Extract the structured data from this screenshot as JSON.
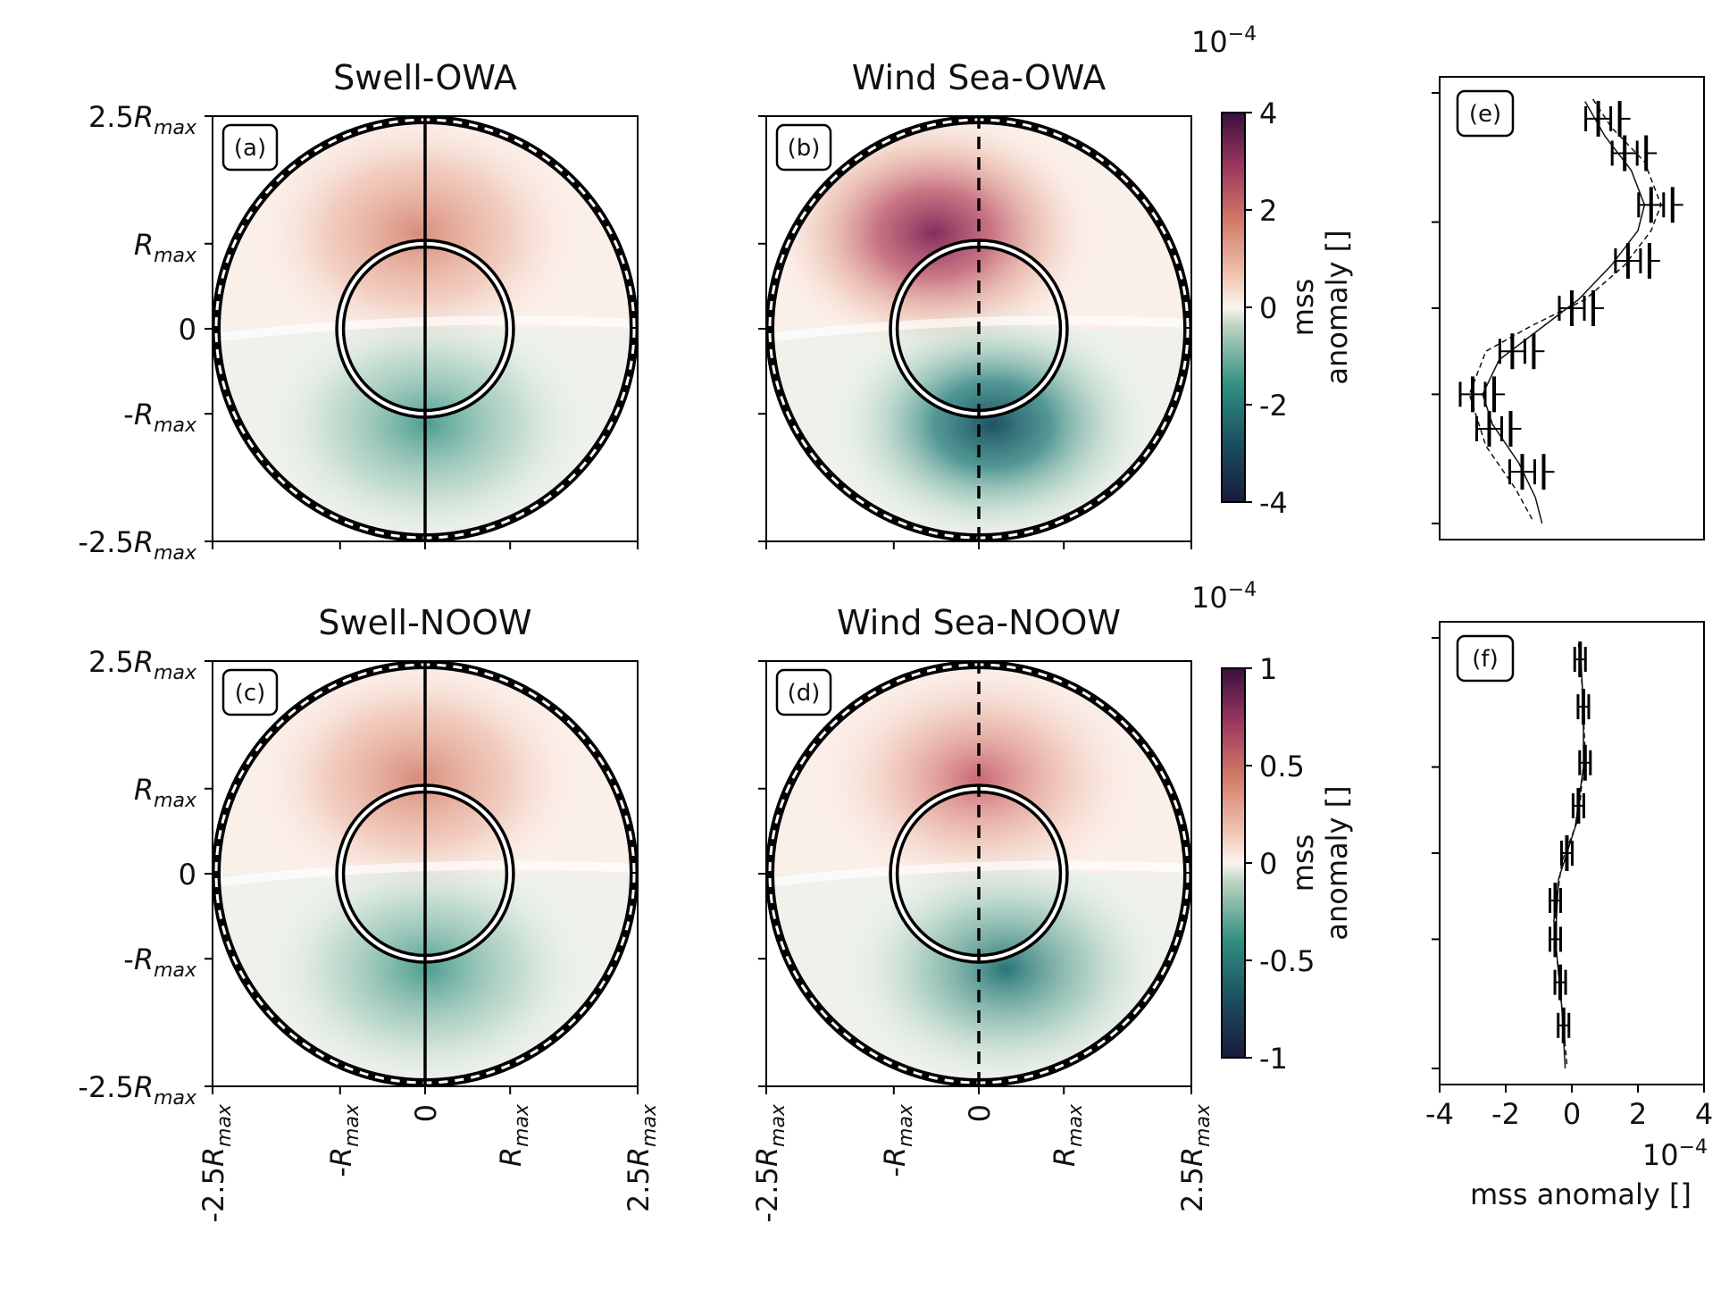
{
  "chart_data": [
    {
      "type": "heatmap",
      "panel": "(a)",
      "title": "Swell-OWA",
      "x_ticks": [
        "-2.5R_max",
        "-R_max",
        "0",
        "R_max",
        "2.5R_max"
      ],
      "y_ticks": [
        "2.5R_max",
        "R_max",
        "0",
        "-R_max",
        "-2.5R_max"
      ],
      "center_line": "solid",
      "peak_positive": 2.0,
      "peak_negative": -2.0,
      "clim": [
        -4,
        4
      ],
      "scale_exponent": "10^-4"
    },
    {
      "type": "heatmap",
      "panel": "(b)",
      "title": "Wind Sea-OWA",
      "x_ticks": [
        "-2.5R_max",
        "-R_max",
        "0",
        "R_max",
        "2.5R_max"
      ],
      "center_line": "dashed",
      "peak_positive": 4.0,
      "peak_negative": -4.0,
      "clim": [
        -4,
        4
      ],
      "colorbar": {
        "ticks": [
          "4",
          "2",
          "0",
          "-2",
          "-4"
        ],
        "label": "mss anomaly []",
        "exponent": "10^{-4}"
      }
    },
    {
      "type": "heatmap",
      "panel": "(c)",
      "title": "Swell-NOOW",
      "x_ticks": [
        "-2.5R_max",
        "-R_max",
        "0",
        "R_max",
        "2.5R_max"
      ],
      "y_ticks": [
        "2.5R_max",
        "R_max",
        "0",
        "-R_max",
        "-2.5R_max"
      ],
      "center_line": "solid",
      "peak_positive": 0.5,
      "peak_negative": -0.5,
      "clim": [
        -1,
        1
      ]
    },
    {
      "type": "heatmap",
      "panel": "(d)",
      "title": "Wind Sea-NOOW",
      "x_ticks": [
        "-2.5R_max",
        "-R_max",
        "0",
        "R_max",
        "2.5R_max"
      ],
      "center_line": "dashed",
      "peak_positive": 0.7,
      "peak_negative": -0.7,
      "clim": [
        -1,
        1
      ],
      "colorbar": {
        "ticks": [
          "1",
          "0.5",
          "0",
          "-0.5",
          "-1"
        ],
        "label": "mss anomaly []",
        "exponent": "10^{-4}"
      }
    },
    {
      "type": "scatter",
      "panel": "(e)",
      "xlim": [
        -4,
        4
      ],
      "ylim": [
        -2.5,
        2.5
      ],
      "y_units": "R_max",
      "points": [
        {
          "y": 2.2,
          "x": 0.8
        },
        {
          "y": 1.8,
          "x": 1.6
        },
        {
          "y": 1.2,
          "x": 2.4
        },
        {
          "y": 0.55,
          "x": 1.7
        },
        {
          "y": 0.0,
          "x": 0.0
        },
        {
          "y": -0.5,
          "x": -1.8
        },
        {
          "y": -1.0,
          "x": -3.0
        },
        {
          "y": -1.4,
          "x": -2.5
        },
        {
          "y": -1.9,
          "x": -1.5
        }
      ],
      "solid_curve": [
        [
          -0.9,
          -2.5
        ],
        [
          -1.1,
          -2.2
        ],
        [
          -1.6,
          -1.8
        ],
        [
          -2.4,
          -1.35
        ],
        [
          -2.7,
          -1.0
        ],
        [
          -2.2,
          -0.6
        ],
        [
          -1.0,
          -0.25
        ],
        [
          0.2,
          0.1
        ],
        [
          1.2,
          0.5
        ],
        [
          2.0,
          0.9
        ],
        [
          2.2,
          1.2
        ],
        [
          1.8,
          1.6
        ],
        [
          1.0,
          2.0
        ],
        [
          0.4,
          2.4
        ]
      ],
      "dashed_curve": [
        [
          -1.2,
          -2.45
        ],
        [
          -1.7,
          -2.1
        ],
        [
          -2.6,
          -1.6
        ],
        [
          -3.1,
          -1.0
        ],
        [
          -2.6,
          -0.5
        ],
        [
          -1.2,
          -0.2
        ],
        [
          0.4,
          0.1
        ],
        [
          1.6,
          0.5
        ],
        [
          2.4,
          0.9
        ],
        [
          2.7,
          1.2
        ],
        [
          2.2,
          1.7
        ],
        [
          1.2,
          2.1
        ],
        [
          0.6,
          2.45
        ]
      ]
    },
    {
      "type": "scatter",
      "panel": "(f)",
      "xlim": [
        -4,
        4
      ],
      "ylim": [
        -2.5,
        2.5
      ],
      "y_units": "R_max",
      "xlabel": "mss anomaly []",
      "x_ticks": [
        "-4",
        "-2",
        "0",
        "2",
        "4"
      ],
      "x_exponent": "10^{-4}",
      "points": [
        {
          "y": 2.25,
          "x": 0.25
        },
        {
          "y": 1.7,
          "x": 0.35
        },
        {
          "y": 1.05,
          "x": 0.4
        },
        {
          "y": 0.55,
          "x": 0.2
        },
        {
          "y": 0.0,
          "x": -0.15
        },
        {
          "y": -0.55,
          "x": -0.5
        },
        {
          "y": -1.0,
          "x": -0.5
        },
        {
          "y": -1.5,
          "x": -0.35
        },
        {
          "y": -2.0,
          "x": -0.25
        }
      ],
      "solid_curve": [
        [
          -0.2,
          -2.5
        ],
        [
          -0.3,
          -1.8
        ],
        [
          -0.5,
          -1.0
        ],
        [
          -0.4,
          -0.3
        ],
        [
          0.1,
          0.3
        ],
        [
          0.35,
          1.0
        ],
        [
          0.35,
          1.7
        ],
        [
          0.25,
          2.4
        ]
      ],
      "dashed_curve": [
        [
          -0.15,
          -2.45
        ],
        [
          -0.35,
          -1.6
        ],
        [
          -0.55,
          -0.8
        ],
        [
          -0.3,
          -0.1
        ],
        [
          0.2,
          0.4
        ],
        [
          0.4,
          1.2
        ],
        [
          0.3,
          2.0
        ],
        [
          0.2,
          2.45
        ]
      ]
    }
  ]
}
